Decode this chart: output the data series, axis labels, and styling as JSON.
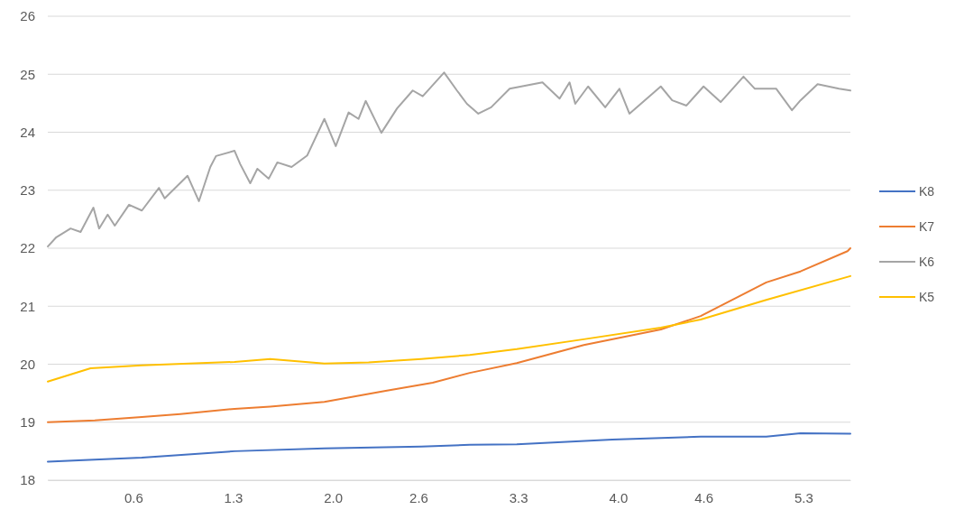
{
  "chart_data": {
    "type": "line",
    "xlim": [
      0,
      5.63
    ],
    "xticks": [
      0.6,
      1.3,
      {
        "value": 2,
        "label": "2.0"
      },
      2.6,
      3.3,
      {
        "value": 4,
        "label": "4.0"
      },
      4.6,
      5.3
    ],
    "ylim": [
      18,
      26
    ],
    "yticks": [
      18,
      19,
      20,
      21,
      22,
      23,
      24,
      25,
      26
    ],
    "grid": "y",
    "legend": "right",
    "marker": "none",
    "line_style": "solid",
    "series": [
      {
        "name": "K8",
        "color": "#4472c4",
        "x": [
          0,
          0.66,
          1.31,
          1.94,
          2.62,
          2.96,
          3.29,
          3.96,
          4.58,
          5.04,
          5.28,
          5.63
        ],
        "values": [
          18.32,
          18.39,
          18.5,
          18.55,
          18.58,
          18.61,
          18.62,
          18.7,
          18.75,
          18.75,
          18.81,
          18.8
        ]
      },
      {
        "name": "K7",
        "color": "#ed7d31",
        "x": [
          0,
          0.33,
          0.66,
          0.93,
          1.31,
          1.56,
          1.94,
          2.37,
          2.7,
          2.96,
          3.29,
          3.76,
          4.3,
          4.58,
          5.04,
          5.28,
          5.61,
          5.63
        ],
        "values": [
          19.0,
          19.03,
          19.09,
          19.14,
          19.23,
          19.27,
          19.35,
          19.54,
          19.68,
          19.85,
          20.02,
          20.33,
          20.6,
          20.83,
          21.41,
          21.6,
          21.95,
          22.0
        ]
      },
      {
        "name": "K6",
        "color": "#a5a5a5",
        "x": [
          0,
          0.06,
          0.16,
          0.23,
          0.32,
          0.36,
          0.42,
          0.47,
          0.57,
          0.66,
          0.78,
          0.82,
          0.98,
          1.06,
          1.14,
          1.18,
          1.31,
          1.35,
          1.42,
          1.47,
          1.55,
          1.61,
          1.71,
          1.82,
          1.94,
          2.02,
          2.11,
          2.18,
          2.23,
          2.34,
          2.45,
          2.56,
          2.63,
          2.78,
          2.87,
          2.94,
          3.02,
          3.11,
          3.24,
          3.47,
          3.59,
          3.66,
          3.7,
          3.79,
          3.91,
          4.01,
          4.08,
          4.3,
          4.38,
          4.48,
          4.6,
          4.72,
          4.88,
          4.96,
          5.11,
          5.22,
          5.28,
          5.4,
          5.55,
          5.63
        ],
        "values": [
          22.03,
          22.19,
          22.34,
          22.28,
          22.7,
          22.34,
          22.58,
          22.39,
          22.75,
          22.65,
          23.04,
          22.86,
          23.25,
          22.81,
          23.4,
          23.59,
          23.68,
          23.45,
          23.12,
          23.37,
          23.2,
          23.48,
          23.4,
          23.6,
          24.23,
          23.76,
          24.34,
          24.23,
          24.54,
          23.99,
          24.41,
          24.72,
          24.62,
          25.03,
          24.72,
          24.49,
          24.32,
          24.43,
          24.75,
          24.86,
          24.58,
          24.86,
          24.49,
          24.79,
          24.43,
          24.75,
          24.32,
          24.79,
          24.55,
          24.46,
          24.79,
          24.52,
          24.96,
          24.75,
          24.75,
          24.38,
          24.55,
          24.83,
          24.75,
          24.72
        ]
      },
      {
        "name": "K5",
        "color": "#ffc000",
        "x": [
          0,
          0.3,
          0.66,
          1.31,
          1.56,
          1.94,
          2.25,
          2.62,
          2.96,
          3.29,
          3.76,
          4.3,
          4.58,
          5.04,
          5.63
        ],
        "values": [
          19.7,
          19.93,
          19.98,
          20.04,
          20.09,
          20.01,
          20.03,
          20.09,
          20.16,
          20.26,
          20.43,
          20.63,
          20.77,
          21.11,
          21.52
        ]
      }
    ]
  }
}
